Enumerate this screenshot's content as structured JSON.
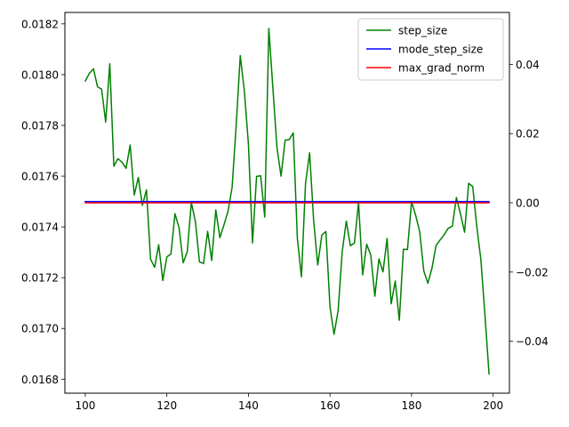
{
  "chart_data": {
    "type": "line",
    "title": "",
    "xlabel": "",
    "ylabel": "",
    "y2label": "",
    "grid": false,
    "legend_position": "top-right",
    "xlim": [
      95,
      204
    ],
    "ylim": [
      0.016745,
      0.018245
    ],
    "y2lim": [
      -0.055,
      0.055
    ],
    "x_ticks": [
      100,
      120,
      140,
      160,
      180,
      200
    ],
    "x_tick_labels": [
      "100",
      "120",
      "140",
      "160",
      "180",
      "200"
    ],
    "y_ticks": [
      0.0168,
      0.017,
      0.0172,
      0.0174,
      0.0176,
      0.0178,
      0.018,
      0.0182
    ],
    "y_tick_labels": [
      "0.0168",
      "0.0170",
      "0.0172",
      "0.0174",
      "0.0176",
      "0.0178",
      "0.0180",
      "0.0182"
    ],
    "y2_ticks": [
      -0.04,
      -0.02,
      0.0,
      0.02,
      0.04
    ],
    "y2_tick_labels": [
      "−0.04",
      "−0.02",
      "0.00",
      "0.02",
      "0.04"
    ],
    "series": [
      {
        "name": "step_size",
        "axis": "left",
        "color": "#008000",
        "x": [
          100,
          101,
          102,
          103,
          104,
          105,
          106,
          107,
          108,
          109,
          110,
          111,
          112,
          113,
          114,
          115,
          116,
          117,
          118,
          119,
          120,
          121,
          122,
          123,
          124,
          125,
          126,
          127,
          128,
          129,
          130,
          131,
          132,
          133,
          134,
          135,
          136,
          137,
          138,
          139,
          140,
          141,
          142,
          143,
          144,
          145,
          146,
          147,
          148,
          149,
          150,
          151,
          152,
          153,
          154,
          155,
          156,
          157,
          158,
          159,
          160,
          161,
          162,
          163,
          164,
          165,
          166,
          167,
          168,
          169,
          170,
          171,
          172,
          173,
          174,
          175,
          176,
          177,
          178,
          179,
          180,
          181,
          182,
          183,
          184,
          185,
          186,
          187,
          188,
          189,
          190,
          191,
          192,
          193,
          194,
          195,
          196,
          197,
          198,
          199
        ],
        "y": [
          0.017975,
          0.018005,
          0.018023,
          0.017952,
          0.017943,
          0.017813,
          0.018043,
          0.017639,
          0.017669,
          0.017655,
          0.017631,
          0.017723,
          0.017526,
          0.017595,
          0.017485,
          0.017546,
          0.017273,
          0.017241,
          0.01733,
          0.017189,
          0.017282,
          0.017293,
          0.017452,
          0.017396,
          0.017259,
          0.017302,
          0.017496,
          0.017421,
          0.017262,
          0.017256,
          0.017383,
          0.017268,
          0.017467,
          0.017358,
          0.017408,
          0.017462,
          0.017556,
          0.0178,
          0.018075,
          0.017936,
          0.017727,
          0.017337,
          0.017599,
          0.017602,
          0.017439,
          0.018182,
          0.017947,
          0.017712,
          0.0176,
          0.017742,
          0.017744,
          0.017771,
          0.017354,
          0.017204,
          0.017571,
          0.017692,
          0.017424,
          0.01725,
          0.017368,
          0.017382,
          0.017085,
          0.016977,
          0.017071,
          0.017303,
          0.017423,
          0.017326,
          0.017337,
          0.017497,
          0.017211,
          0.017332,
          0.017289,
          0.017127,
          0.017274,
          0.017223,
          0.017355,
          0.017097,
          0.017187,
          0.017032,
          0.017312,
          0.017311,
          0.017499,
          0.017446,
          0.017381,
          0.017227,
          0.017178,
          0.017237,
          0.017326,
          0.017349,
          0.017369,
          0.017395,
          0.017403,
          0.017516,
          0.017451,
          0.017379,
          0.017572,
          0.017559,
          0.017401,
          0.017271,
          0.017052,
          0.016821
        ]
      },
      {
        "name": "mode_step_size",
        "axis": "left",
        "color": "#0000ff",
        "x": [
          100,
          199
        ],
        "y": [
          0.0175,
          0.0175
        ]
      },
      {
        "name": "max_grad_norm",
        "axis": "right",
        "color": "#ff0000",
        "x": [
          100,
          199
        ],
        "y": [
          0.0,
          0.0
        ]
      }
    ]
  }
}
